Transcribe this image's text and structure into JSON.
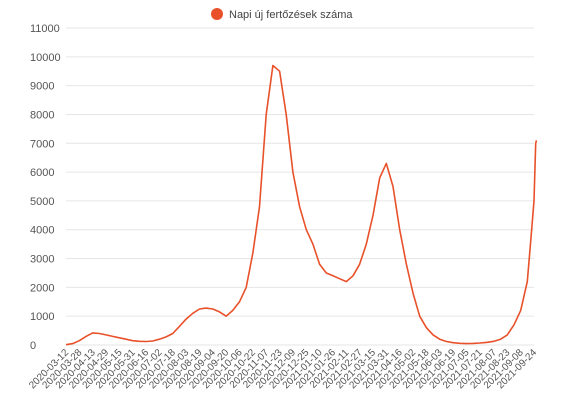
{
  "chart_data": {
    "type": "line",
    "title": "",
    "xlabel": "",
    "ylabel": "",
    "legend": {
      "placement": "top-center"
    },
    "grid": {
      "y": true,
      "x": false
    },
    "ylim": [
      0,
      11000
    ],
    "yticks": [
      0,
      1000,
      2000,
      3000,
      4000,
      5000,
      6000,
      7000,
      8000,
      9000,
      10000,
      11000
    ],
    "colors": {
      "series": "#e8512a",
      "grid": "#e6e6e6",
      "text": "#555555"
    },
    "x_labels": [
      "2020-03-12",
      "2020-03-28",
      "2020-04-13",
      "2020-04-29",
      "2020-05-15",
      "2020-05-31",
      "2020-06-16",
      "2020-07-02",
      "2020-07-18",
      "2020-08-03",
      "2020-08-19",
      "2020-09-04",
      "2020-09-20",
      "2020-10-06",
      "2020-10-22",
      "2020-11-07",
      "2020-11-23",
      "2020-12-09",
      "2020-12-25",
      "2021-01-10",
      "2021-01-26",
      "2021-02-11",
      "2021-02-27",
      "2021-03-15",
      "2021-03-31",
      "2021-04-16",
      "2021-05-02",
      "2021-05-18",
      "2021-06-03",
      "2021-06-19",
      "2021-07-05",
      "2021-07-21",
      "2021-08-07",
      "2021-08-23",
      "2021-09-08",
      "2021-09-24"
    ],
    "series": [
      {
        "name": "Napi új fertőzések száma",
        "points": [
          [
            "2020-03-12",
            10
          ],
          [
            "2020-03-20",
            50
          ],
          [
            "2020-03-28",
            150
          ],
          [
            "2020-04-05",
            300
          ],
          [
            "2020-04-13",
            420
          ],
          [
            "2020-04-21",
            400
          ],
          [
            "2020-04-29",
            350
          ],
          [
            "2020-05-07",
            300
          ],
          [
            "2020-05-15",
            250
          ],
          [
            "2020-05-23",
            200
          ],
          [
            "2020-05-31",
            150
          ],
          [
            "2020-06-08",
            130
          ],
          [
            "2020-06-16",
            120
          ],
          [
            "2020-06-24",
            140
          ],
          [
            "2020-07-02",
            200
          ],
          [
            "2020-07-10",
            280
          ],
          [
            "2020-07-18",
            400
          ],
          [
            "2020-07-26",
            650
          ],
          [
            "2020-08-03",
            900
          ],
          [
            "2020-08-11",
            1100
          ],
          [
            "2020-08-19",
            1250
          ],
          [
            "2020-08-27",
            1280
          ],
          [
            "2020-09-04",
            1250
          ],
          [
            "2020-09-12",
            1150
          ],
          [
            "2020-09-20",
            1000
          ],
          [
            "2020-09-28",
            1200
          ],
          [
            "2020-10-06",
            1500
          ],
          [
            "2020-10-14",
            2000
          ],
          [
            "2020-10-22",
            3200
          ],
          [
            "2020-10-30",
            4800
          ],
          [
            "2020-11-07",
            8000
          ],
          [
            "2020-11-15",
            9700
          ],
          [
            "2020-11-23",
            9500
          ],
          [
            "2020-12-01",
            8000
          ],
          [
            "2020-12-09",
            6000
          ],
          [
            "2020-12-17",
            4800
          ],
          [
            "2020-12-25",
            4000
          ],
          [
            "2021-01-02",
            3500
          ],
          [
            "2021-01-10",
            2800
          ],
          [
            "2021-01-18",
            2500
          ],
          [
            "2021-01-26",
            2400
          ],
          [
            "2021-02-03",
            2300
          ],
          [
            "2021-02-11",
            2200
          ],
          [
            "2021-02-19",
            2400
          ],
          [
            "2021-02-27",
            2800
          ],
          [
            "2021-03-07",
            3500
          ],
          [
            "2021-03-15",
            4500
          ],
          [
            "2021-03-23",
            5800
          ],
          [
            "2021-03-31",
            6300
          ],
          [
            "2021-04-08",
            5500
          ],
          [
            "2021-04-16",
            4000
          ],
          [
            "2021-04-24",
            2800
          ],
          [
            "2021-05-02",
            1800
          ],
          [
            "2021-05-10",
            1000
          ],
          [
            "2021-05-18",
            600
          ],
          [
            "2021-05-26",
            350
          ],
          [
            "2021-06-03",
            200
          ],
          [
            "2021-06-11",
            120
          ],
          [
            "2021-06-19",
            80
          ],
          [
            "2021-06-27",
            60
          ],
          [
            "2021-07-05",
            50
          ],
          [
            "2021-07-13",
            55
          ],
          [
            "2021-07-21",
            70
          ],
          [
            "2021-07-29",
            90
          ],
          [
            "2021-08-07",
            130
          ],
          [
            "2021-08-15",
            200
          ],
          [
            "2021-08-23",
            350
          ],
          [
            "2021-08-31",
            700
          ],
          [
            "2021-09-08",
            1200
          ],
          [
            "2021-09-16",
            2200
          ],
          [
            "2021-09-20",
            3600
          ],
          [
            "2021-09-24",
            5000
          ],
          [
            "2021-09-26",
            7000
          ],
          [
            "2021-09-27",
            7100
          ]
        ]
      }
    ]
  }
}
